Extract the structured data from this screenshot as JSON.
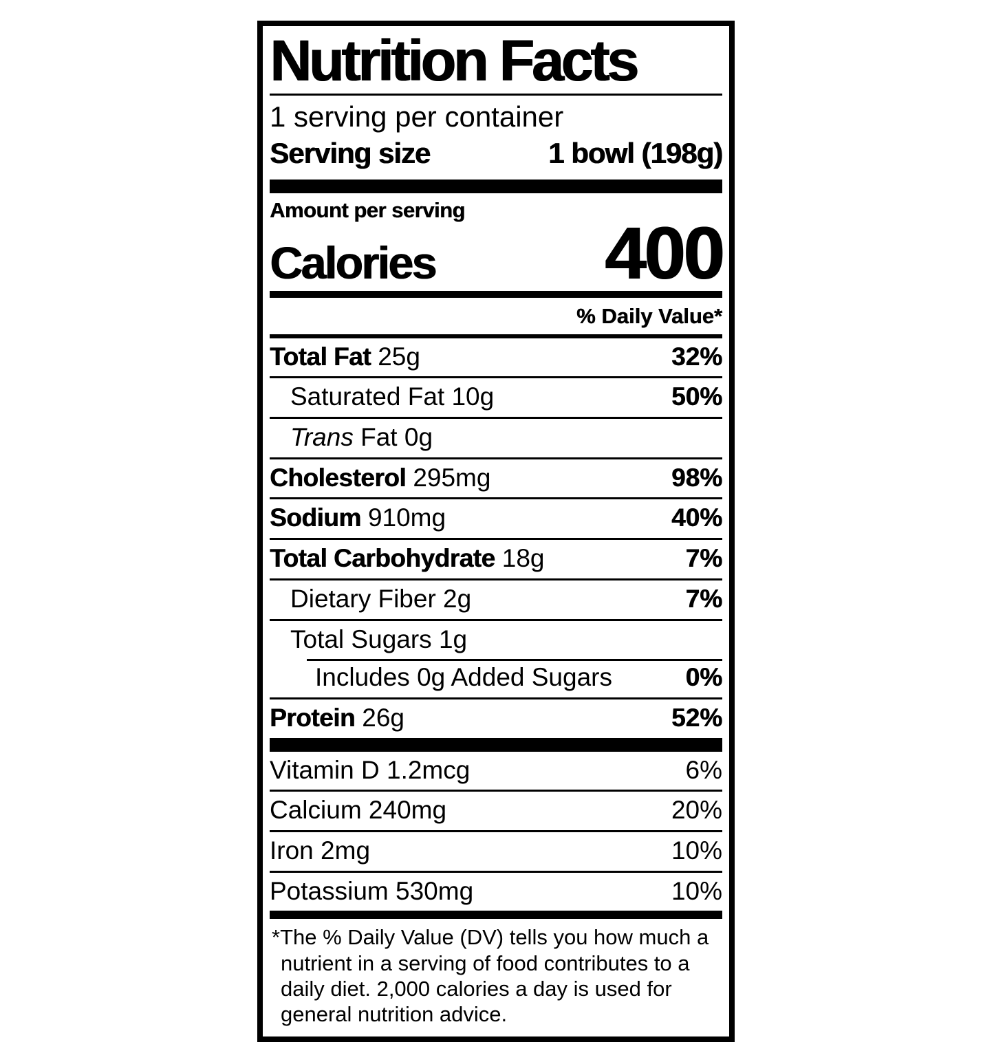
{
  "colors": {
    "text": "#000000",
    "background": "#ffffff"
  },
  "label": {
    "title": "Nutrition Facts",
    "servings_per_container": "1 serving per container",
    "serving_size_label": "Serving size",
    "serving_size_value": "1 bowl (198g)",
    "amount_per_serving": "Amount per serving",
    "calories_label": "Calories",
    "calories_value": "400",
    "daily_value_header": "% Daily Value*",
    "nutrients": [
      {
        "name": "Total Fat",
        "amount": "25g",
        "dv": "32%",
        "bold": true,
        "indent": 0
      },
      {
        "name": "Saturated Fat",
        "amount": "10g",
        "dv": "50%",
        "bold": false,
        "indent": 1
      },
      {
        "name": "Trans Fat",
        "amount": "0g",
        "dv": "",
        "bold": false,
        "indent": 1,
        "italic_first_word": true
      },
      {
        "name": "Cholesterol",
        "amount": "295mg",
        "dv": "98%",
        "bold": true,
        "indent": 0
      },
      {
        "name": "Sodium",
        "amount": "910mg",
        "dv": "40%",
        "bold": true,
        "indent": 0
      },
      {
        "name": "Total Carbohydrate",
        "amount": "18g",
        "dv": "7%",
        "bold": true,
        "indent": 0
      },
      {
        "name": "Dietary Fiber",
        "amount": "2g",
        "dv": "7%",
        "bold": false,
        "indent": 1
      },
      {
        "name": "Total Sugars",
        "amount": "1g",
        "dv": "",
        "bold": false,
        "indent": 1
      },
      {
        "name": "Includes 0g Added Sugars",
        "amount": "",
        "dv": "0%",
        "bold": false,
        "indent": 2,
        "sep_indent": true
      },
      {
        "name": "Protein",
        "amount": "26g",
        "dv": "52%",
        "bold": true,
        "indent": 0
      }
    ],
    "vitamins": [
      {
        "name": "Vitamin D",
        "amount": "1.2mcg",
        "dv": "6%"
      },
      {
        "name": "Calcium",
        "amount": "240mg",
        "dv": "20%"
      },
      {
        "name": "Iron",
        "amount": "2mg",
        "dv": "10%"
      },
      {
        "name": "Potassium",
        "amount": "530mg",
        "dv": "10%"
      }
    ],
    "footnote": "*The % Daily Value (DV) tells you how much a nutrient in a serving of food contributes to a daily diet. 2,000 calories a day is used for general nutrition advice."
  }
}
